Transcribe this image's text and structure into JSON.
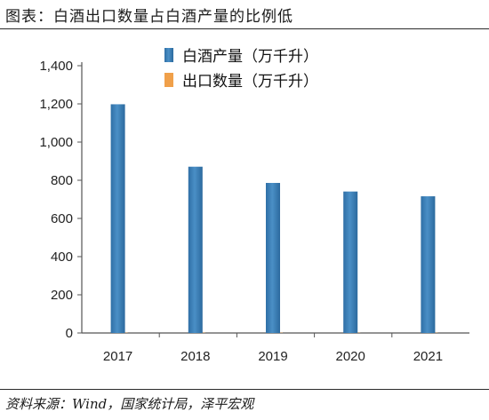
{
  "header": {
    "title": "图表：白酒出口数量占白酒产量的比例低"
  },
  "footer": {
    "source": "资料来源：Wind，国家统计局，泽平宏观"
  },
  "colors": {
    "bar_primary": "#4a8fc6",
    "bar_secondary": "#f0a04a",
    "axis": "#555555"
  },
  "chart_data": {
    "type": "bar",
    "categories": [
      "2017",
      "2018",
      "2019",
      "2020",
      "2021"
    ],
    "series": [
      {
        "name": "白酒产量（万千升）",
        "values": [
          1198,
          871,
          786,
          741,
          716
        ]
      },
      {
        "name": "出口数量（万千升）",
        "values": [
          1.6,
          1.6,
          1.6,
          1.4,
          1.4
        ]
      }
    ],
    "yticks": [
      "0",
      "200",
      "400",
      "600",
      "800",
      "1,000",
      "1,200",
      "1,400"
    ],
    "ylim": [
      0,
      1400
    ],
    "legend": "top-center",
    "grid": false
  }
}
